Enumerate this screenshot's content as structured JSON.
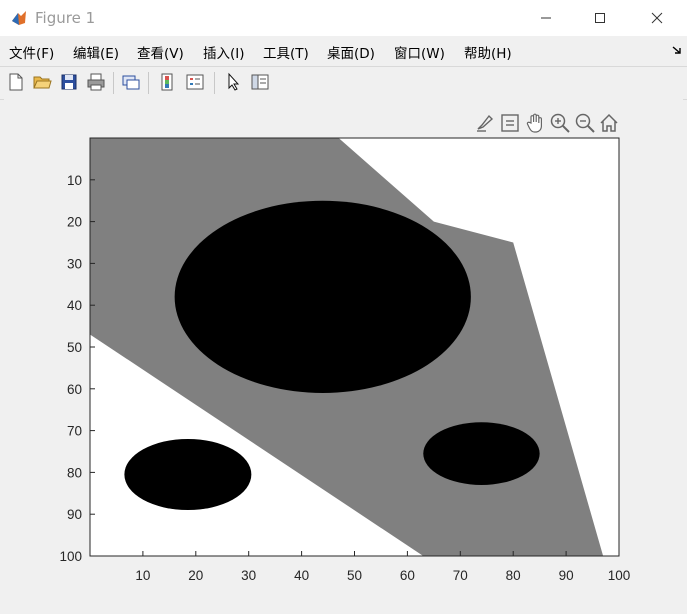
{
  "window": {
    "title": "Figure 1",
    "controls": {
      "minimize": "—",
      "maximize": "☐",
      "close": "✕"
    }
  },
  "menu": [
    {
      "label": "文件(F)"
    },
    {
      "label": "编辑(E)"
    },
    {
      "label": "查看(V)"
    },
    {
      "label": "插入(I)"
    },
    {
      "label": "工具(T)"
    },
    {
      "label": "桌面(D)"
    },
    {
      "label": "窗口(W)"
    },
    {
      "label": "帮助(H)"
    }
  ],
  "toolbar": {
    "buttons": [
      {
        "icon": "new-file-icon"
      },
      {
        "icon": "open-folder-icon"
      },
      {
        "icon": "save-icon"
      },
      {
        "icon": "print-icon"
      },
      {
        "icon": "link-axes-icon"
      },
      {
        "icon": "colorbar-icon"
      },
      {
        "icon": "legend-icon"
      },
      {
        "icon": "pointer-icon"
      },
      {
        "icon": "property-editor-icon"
      }
    ]
  },
  "axes_toolbar": [
    {
      "icon": "brush-icon"
    },
    {
      "icon": "data-tips-icon"
    },
    {
      "icon": "pan-hand-icon"
    },
    {
      "icon": "zoom-in-icon"
    },
    {
      "icon": "zoom-out-icon"
    },
    {
      "icon": "restore-view-icon"
    }
  ],
  "chart_data": {
    "type": "heatmap",
    "colormap": "gray",
    "levels": {
      "black": 0,
      "gray": 0.5,
      "white": 1
    },
    "xlim": [
      0,
      100
    ],
    "ylim": [
      0,
      100
    ],
    "y_reversed": true,
    "xticks": [
      10,
      20,
      30,
      40,
      50,
      60,
      70,
      80,
      90,
      100
    ],
    "yticks": [
      10,
      20,
      30,
      40,
      50,
      60,
      70,
      80,
      90,
      100
    ],
    "gray_band": {
      "top_edge": [
        [
          0,
          0
        ],
        [
          47,
          0
        ],
        [
          65,
          20
        ],
        [
          80,
          25
        ],
        [
          97,
          100
        ]
      ],
      "bottom_edge": [
        [
          0,
          47
        ],
        [
          63,
          100
        ]
      ]
    },
    "circles": [
      {
        "cx": 44,
        "cy": 38,
        "rx": 28,
        "ry": 23
      },
      {
        "cx": 18.5,
        "cy": 80.5,
        "rx": 12,
        "ry": 8.5
      },
      {
        "cx": 74,
        "cy": 75.5,
        "rx": 11,
        "ry": 7.5
      }
    ]
  }
}
